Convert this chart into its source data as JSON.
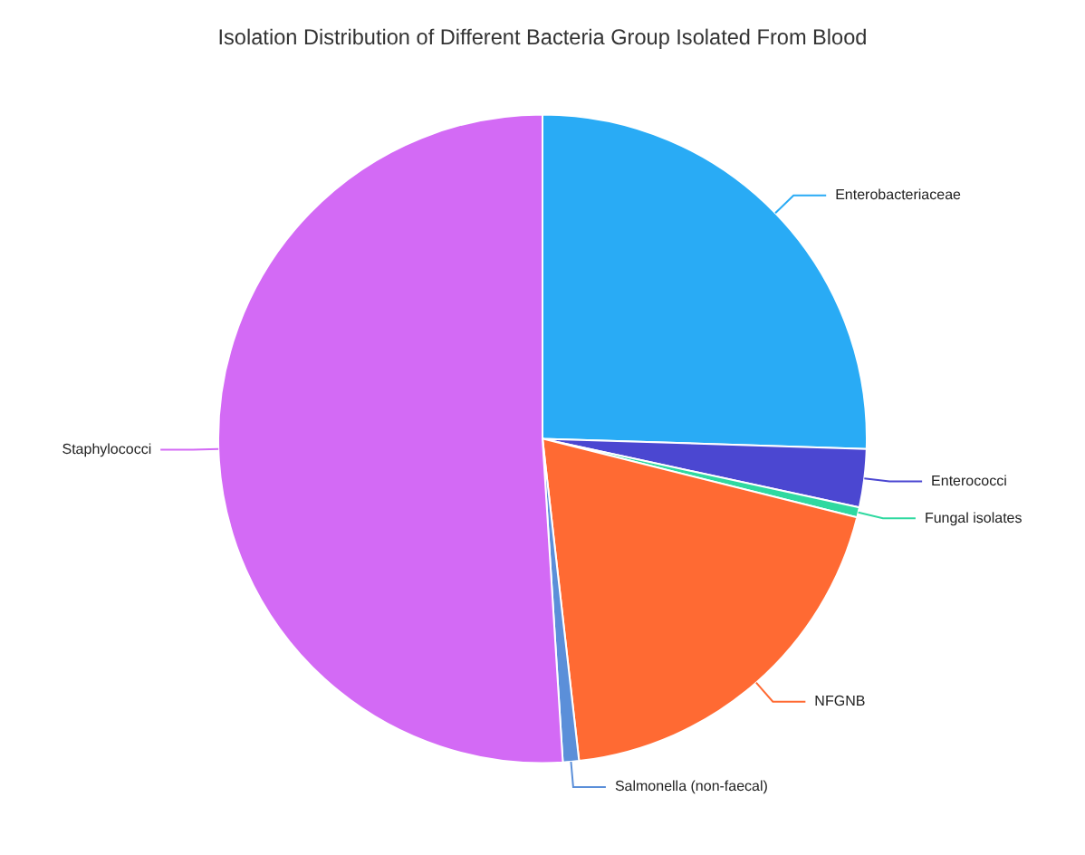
{
  "chart_data": {
    "type": "pie",
    "title": "Isolation Distribution of Different Bacteria Group Isolated From Blood",
    "categories": [
      "Enterobacteriaceae",
      "Enterococci",
      "Fungal isolates",
      "NFGNB",
      "Salmonella (non-faecal)",
      "Staphylococci"
    ],
    "values": [
      25.5,
      2.9,
      0.5,
      19.3,
      0.8,
      51.0
    ],
    "colors": [
      "#29abf5",
      "#4b47d1",
      "#2fd9a0",
      "#ff6a33",
      "#5b8fd9",
      "#d36af5"
    ],
    "legend": false
  }
}
